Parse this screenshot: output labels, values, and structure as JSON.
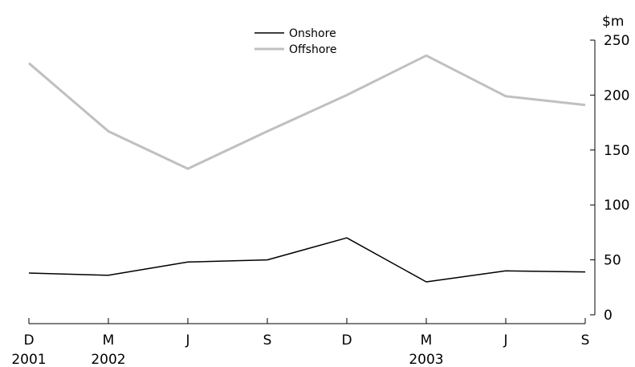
{
  "chart_data": {
    "type": "line",
    "y_unit": "$m",
    "ylim": [
      0,
      250
    ],
    "y_ticks": [
      0,
      50,
      100,
      150,
      200,
      250
    ],
    "y_axis_side": "right",
    "grid": false,
    "legend_position": "top-center",
    "x": [
      "D",
      "M",
      "J",
      "S",
      "D",
      "M",
      "J",
      "S"
    ],
    "x_year_labels": [
      "2001",
      "2002",
      "",
      "",
      "",
      "2003",
      "",
      ""
    ],
    "series": [
      {
        "name": "Onshore",
        "color": "#000000",
        "values": [
          38,
          36,
          48,
          50,
          70,
          30,
          40,
          39
        ]
      },
      {
        "name": "Offshore",
        "color": "#c0c0c0",
        "values": [
          229,
          167,
          133,
          167,
          200,
          236,
          199,
          191
        ]
      }
    ]
  }
}
